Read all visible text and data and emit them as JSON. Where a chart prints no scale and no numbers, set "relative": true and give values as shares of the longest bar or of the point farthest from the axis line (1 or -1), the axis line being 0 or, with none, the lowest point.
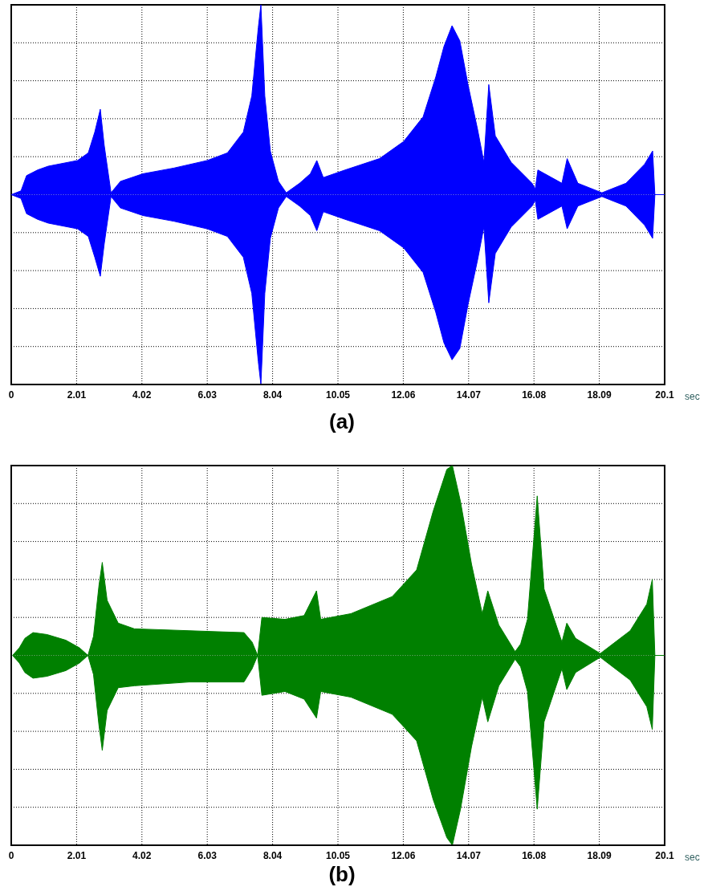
{
  "chart_data": [
    {
      "type": "area",
      "title": "(a)",
      "xlabel": "sec",
      "relative": true,
      "grid": true,
      "xlim": [
        0,
        20.1
      ],
      "xticks": [
        0,
        2.01,
        4.02,
        6.03,
        8.04,
        10.05,
        12.06,
        14.07,
        16.08,
        18.09,
        20.1
      ],
      "x": [
        0,
        0.3,
        0.47,
        0.81,
        1.14,
        2.04,
        2.37,
        2.57,
        2.74,
        2.86,
        3.07,
        3.36,
        4.05,
        5.0,
        6.03,
        6.65,
        7.14,
        7.4,
        7.6,
        7.68,
        7.8,
        7.97,
        8.22,
        8.46,
        8.87,
        9.2,
        9.4,
        9.6,
        10.27,
        11.33,
        12.07,
        12.67,
        13.06,
        13.31,
        13.56,
        13.8,
        14.05,
        14.35,
        14.54,
        14.69,
        14.89,
        15.38,
        16.02,
        16.12,
        16.2,
        16.94,
        17.1,
        17.43,
        18.17,
        18.91,
        19.48,
        19.73,
        19.8,
        20.1
      ],
      "series": [
        {
          "color": "#0000ff",
          "values": [
            0,
            0.02,
            0.1,
            0.13,
            0.15,
            0.18,
            0.22,
            0.33,
            0.45,
            0.26,
            0.01,
            0.07,
            0.11,
            0.14,
            0.18,
            0.22,
            0.33,
            0.52,
            0.88,
            1,
            0.52,
            0.23,
            0.07,
            0.01,
            0.06,
            0.11,
            0.18,
            0.09,
            0.13,
            0.19,
            0.28,
            0.41,
            0.62,
            0.78,
            0.89,
            0.81,
            0.58,
            0.34,
            0.17,
            0.58,
            0.31,
            0.17,
            0.06,
            0.03,
            0.13,
            0.06,
            0.19,
            0.06,
            0.01,
            0.06,
            0.16,
            0.23,
            0,
            0
          ]
        },
        {
          "color": "#0000ff",
          "values": [
            0,
            -0.02,
            -0.1,
            -0.13,
            -0.15,
            -0.18,
            -0.22,
            -0.33,
            -0.43,
            -0.26,
            -0.01,
            -0.07,
            -0.11,
            -0.14,
            -0.18,
            -0.22,
            -0.33,
            -0.52,
            -0.88,
            -1,
            -0.52,
            -0.23,
            -0.07,
            -0.01,
            -0.06,
            -0.11,
            -0.19,
            -0.09,
            -0.13,
            -0.19,
            -0.28,
            -0.41,
            -0.62,
            -0.78,
            -0.87,
            -0.81,
            -0.58,
            -0.34,
            -0.17,
            -0.57,
            -0.31,
            -0.17,
            -0.06,
            -0.03,
            -0.13,
            -0.06,
            -0.18,
            -0.06,
            -0.01,
            -0.06,
            -0.16,
            -0.23,
            0,
            0
          ]
        }
      ]
    },
    {
      "type": "area",
      "title": "(b)",
      "xlabel": "sec",
      "relative": true,
      "grid": true,
      "xlim": [
        0,
        20.1
      ],
      "xticks": [
        0,
        2.01,
        4.02,
        6.03,
        8.04,
        10.05,
        12.06,
        14.07,
        16.08,
        18.09,
        20.1
      ],
      "x": [
        0.04,
        0.25,
        0.42,
        0.67,
        1.1,
        1.68,
        2.1,
        2.36,
        2.53,
        2.7,
        2.8,
        2.95,
        3.29,
        3.79,
        5.48,
        7.16,
        7.41,
        7.58,
        7.71,
        8.42,
        9.01,
        9.39,
        9.52,
        10.45,
        11.72,
        12.47,
        12.98,
        13.4,
        13.57,
        13.82,
        14.16,
        14.49,
        14.66,
        15.0,
        15.5,
        15.67,
        15.88,
        16.18,
        16.39,
        16.94,
        17.09,
        17.36,
        18.12,
        19.04,
        19.55,
        19.72,
        19.8,
        20.1
      ],
      "series": [
        {
          "color": "#008000",
          "values": [
            0,
            0.04,
            0.09,
            0.12,
            0.11,
            0.08,
            0.04,
            0,
            0.1,
            0.37,
            0.49,
            0.29,
            0.17,
            0.14,
            0.13,
            0.12,
            0.07,
            0,
            0.2,
            0.19,
            0.21,
            0.34,
            0.19,
            0.22,
            0.31,
            0.45,
            0.76,
            0.98,
            1,
            0.81,
            0.48,
            0.22,
            0.34,
            0.16,
            0.02,
            0.06,
            0.19,
            0.84,
            0.35,
            0.07,
            0.17,
            0.09,
            0.01,
            0.13,
            0.27,
            0.4,
            0,
            0
          ]
        },
        {
          "color": "#008000",
          "values": [
            0,
            -0.04,
            -0.09,
            -0.12,
            -0.11,
            -0.08,
            -0.04,
            0,
            -0.1,
            -0.37,
            -0.5,
            -0.29,
            -0.17,
            -0.16,
            -0.14,
            -0.14,
            -0.07,
            0,
            -0.21,
            -0.19,
            -0.23,
            -0.33,
            -0.19,
            -0.22,
            -0.31,
            -0.45,
            -0.76,
            -0.96,
            -1,
            -0.81,
            -0.48,
            -0.22,
            -0.35,
            -0.16,
            -0.02,
            -0.06,
            -0.19,
            -0.81,
            -0.35,
            -0.07,
            -0.18,
            -0.09,
            -0.01,
            -0.13,
            -0.27,
            -0.39,
            0,
            0
          ]
        }
      ]
    }
  ]
}
